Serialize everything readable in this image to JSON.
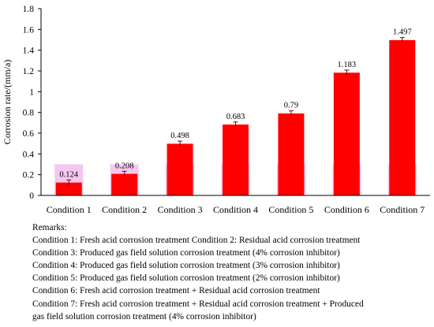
{
  "chart_data": {
    "type": "bar",
    "title": "",
    "xlabel": "",
    "ylabel": "Corrosion rate/(mm/a)",
    "ylim": [
      0,
      1.8
    ],
    "yticks": [
      "0",
      "0.2",
      "0.4",
      "0.6",
      "0.8",
      "1",
      "1.2",
      "1.4",
      "1.6",
      "1.8"
    ],
    "grid": false,
    "legend": "none",
    "categories": [
      "Condition 1",
      "Condition 2",
      "Condition 3",
      "Condition 4",
      "Condition 5",
      "Condition 6",
      "Condition 7"
    ],
    "values": [
      0.124,
      0.208,
      0.498,
      0.683,
      0.79,
      1.183,
      1.497
    ],
    "data_labels": [
      "0.124",
      "0.208",
      "0.498",
      "0.683",
      "0.79",
      "1.183",
      "1.497"
    ],
    "background_band_value": 0.3,
    "error_margin": 0.025,
    "colors": {
      "bar": "#ff0000",
      "band": "#f4c7f0",
      "error": "#7a0000"
    }
  },
  "remarks": {
    "heading": "Remarks:",
    "lines": [
      "Condition 1: Fresh acid corrosion treatment      Condition 2: Residual acid corrosion treatment",
      "Condition 3: Produced  gas  field  solution corrosion treatment (4% corrosion inhibitor)",
      "Condition 4: Produced  gas  field  solution corrosion treatment (3% corrosion inhibitor)",
      "Condition 5: Produced  gas  field  solution corrosion treatment (2% corrosion inhibitor)",
      "Condition 6: Fresh acid corrosion treatment + Residual acid corrosion treatment",
      "Condition 7: Fresh acid corrosion treatment + Residual acid corrosion treatment + Produced",
      "gas  field  solution corrosion treatment (4% corrosion inhibitor)"
    ]
  }
}
